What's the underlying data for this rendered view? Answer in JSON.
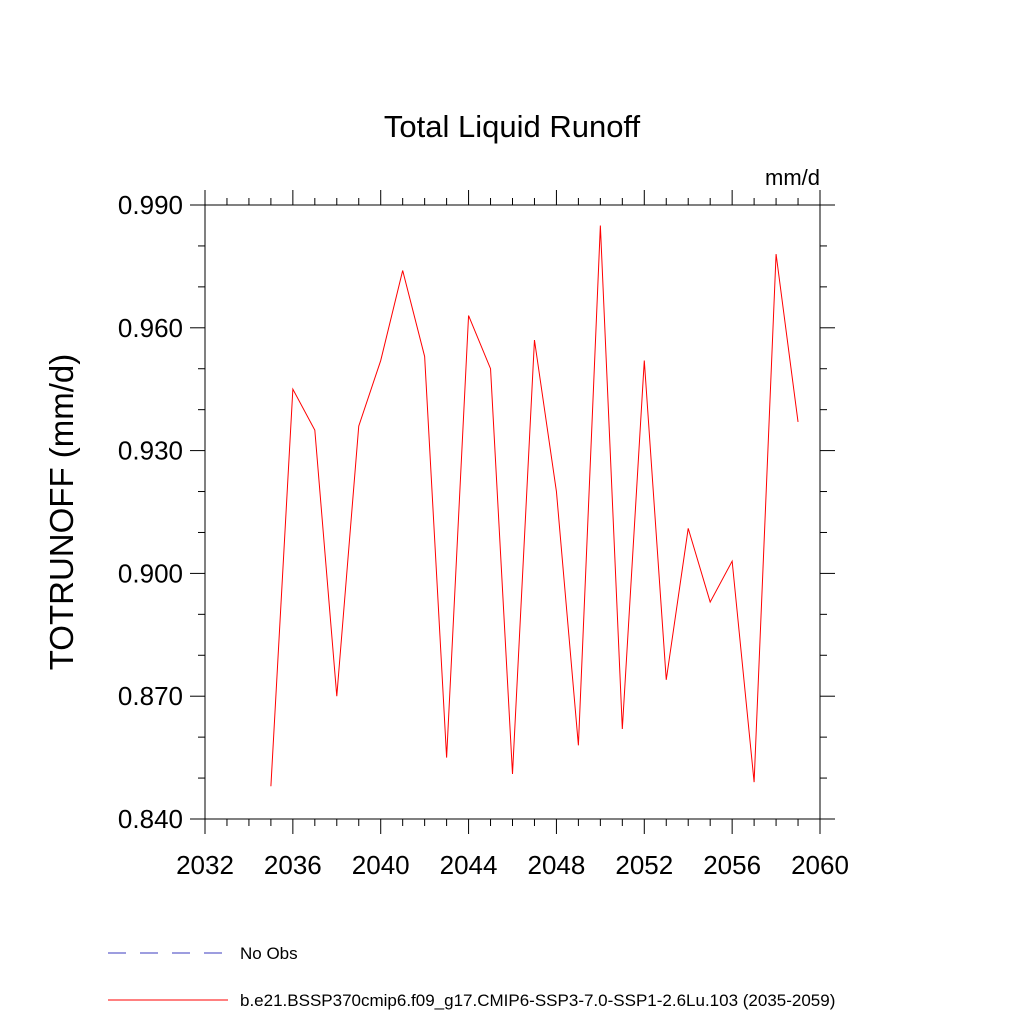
{
  "chart_data": {
    "type": "line",
    "title": "Total Liquid Runoff",
    "units": "mm/d",
    "ylabel": "TOTRUNOFF  (mm/d)",
    "xlabel": "",
    "xlim": [
      2032,
      2060
    ],
    "ylim": [
      0.84,
      0.99
    ],
    "xticks": [
      "2032",
      "2036",
      "2040",
      "2044",
      "2048",
      "2052",
      "2056",
      "2060"
    ],
    "yticks": [
      "0.840",
      "0.870",
      "0.900",
      "0.930",
      "0.960",
      "0.990"
    ],
    "grid": false,
    "legend_position": "bottom-left",
    "series": [
      {
        "name": "No Obs",
        "color": "#3b3bbf",
        "dash": "dashed",
        "values": []
      },
      {
        "name": "b.e21.BSSP370cmip6.f09_g17.CMIP6-SSP3-7.0-SSP1-2.6Lu.103 (2035-2059)",
        "color": "#ff0000",
        "dash": "solid",
        "x": [
          2035,
          2036,
          2037,
          2038,
          2039,
          2040,
          2041,
          2042,
          2043,
          2044,
          2045,
          2046,
          2047,
          2048,
          2049,
          2050,
          2051,
          2052,
          2053,
          2054,
          2055,
          2056,
          2057,
          2058,
          2059
        ],
        "values": [
          0.848,
          0.945,
          0.935,
          0.87,
          0.936,
          0.952,
          0.974,
          0.953,
          0.855,
          0.963,
          0.95,
          0.851,
          0.957,
          0.92,
          0.858,
          0.985,
          0.862,
          0.952,
          0.874,
          0.911,
          0.893,
          0.903,
          0.849,
          0.978,
          0.937
        ]
      }
    ]
  }
}
